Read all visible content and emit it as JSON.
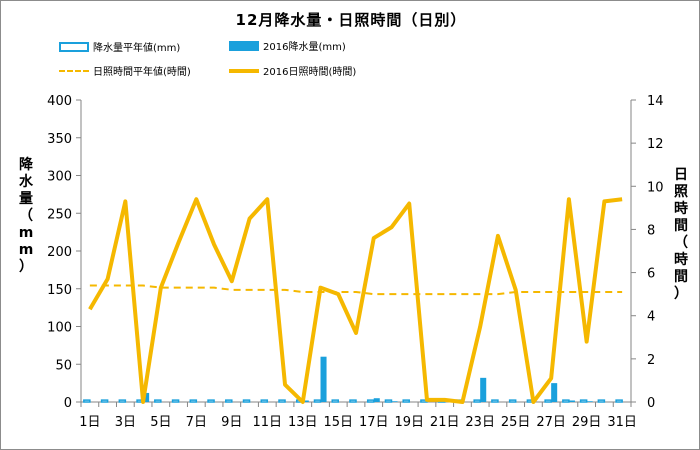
{
  "chart_data": {
    "type": "bar",
    "title": "12月降水量・日照時間（日別）",
    "categories": [
      "1日",
      "2日",
      "3日",
      "4日",
      "5日",
      "6日",
      "7日",
      "8日",
      "9日",
      "10日",
      "11日",
      "12日",
      "13日",
      "14日",
      "15日",
      "16日",
      "17日",
      "18日",
      "19日",
      "20日",
      "21日",
      "22日",
      "23日",
      "24日",
      "25日",
      "26日",
      "27日",
      "28日",
      "29日",
      "30日",
      "31日"
    ],
    "xtick_labels": [
      "1日",
      "3日",
      "5日",
      "7日",
      "9日",
      "11日",
      "13日",
      "15日",
      "17日",
      "19日",
      "21日",
      "23日",
      "25日",
      "27日",
      "29日",
      "31日"
    ],
    "ylabel_left": "降水量（mm）",
    "ylabel_right": "日照時間（時間）",
    "ylim_left": [
      0,
      400
    ],
    "ylim_right": [
      0,
      14
    ],
    "yticks_left": [
      0,
      50,
      100,
      150,
      200,
      250,
      300,
      350,
      400
    ],
    "yticks_right": [
      0,
      2,
      4,
      6,
      8,
      10,
      12,
      14
    ],
    "grid": false,
    "legend_position": "top",
    "series": [
      {
        "name": "降水量平年値(mm)",
        "type": "bar",
        "axis": "left",
        "color": "#1aa0dc",
        "style": "outline",
        "values": [
          2.5,
          2.5,
          2.5,
          2.5,
          2.5,
          2.5,
          2.5,
          2.5,
          2.5,
          2.5,
          2.5,
          2.5,
          2.5,
          2.5,
          2.5,
          2.5,
          2.5,
          2.5,
          2.5,
          2.5,
          2.5,
          2.5,
          2.5,
          2.5,
          2.5,
          2.5,
          2.5,
          2.5,
          2.5,
          2.5,
          2.5
        ]
      },
      {
        "name": "2016降水量(mm)",
        "type": "bar",
        "axis": "left",
        "color": "#1aa0dc",
        "style": "filled",
        "values": [
          0,
          0,
          0,
          12,
          0,
          0,
          0,
          0,
          0,
          0,
          0,
          0,
          2,
          60,
          0,
          0,
          5,
          1,
          0,
          0,
          0,
          0,
          32,
          0,
          0,
          0,
          25,
          2,
          1,
          0,
          0
        ]
      },
      {
        "name": "日照時間平年値(時間)",
        "type": "line",
        "axis": "right",
        "color": "#f5b800",
        "style": "dashed",
        "values": [
          5.4,
          5.4,
          5.4,
          5.4,
          5.3,
          5.3,
          5.3,
          5.3,
          5.2,
          5.2,
          5.2,
          5.2,
          5.1,
          5.1,
          5.1,
          5.1,
          5.0,
          5.0,
          5.0,
          5.0,
          5.0,
          5.0,
          5.0,
          5.0,
          5.1,
          5.1,
          5.1,
          5.1,
          5.1,
          5.1,
          5.1
        ]
      },
      {
        "name": "2016日照時間(時間)",
        "type": "line",
        "axis": "right",
        "color": "#f5b800",
        "style": "solid",
        "values": [
          4.3,
          5.7,
          9.3,
          0.0,
          5.3,
          7.4,
          9.4,
          7.3,
          5.6,
          8.5,
          9.4,
          0.8,
          0.0,
          5.3,
          5.0,
          3.2,
          7.6,
          8.1,
          9.2,
          0.1,
          0.1,
          0.0,
          3.5,
          7.7,
          5.2,
          0.0,
          1.1,
          9.4,
          2.8,
          9.3,
          9.4
        ]
      }
    ]
  }
}
